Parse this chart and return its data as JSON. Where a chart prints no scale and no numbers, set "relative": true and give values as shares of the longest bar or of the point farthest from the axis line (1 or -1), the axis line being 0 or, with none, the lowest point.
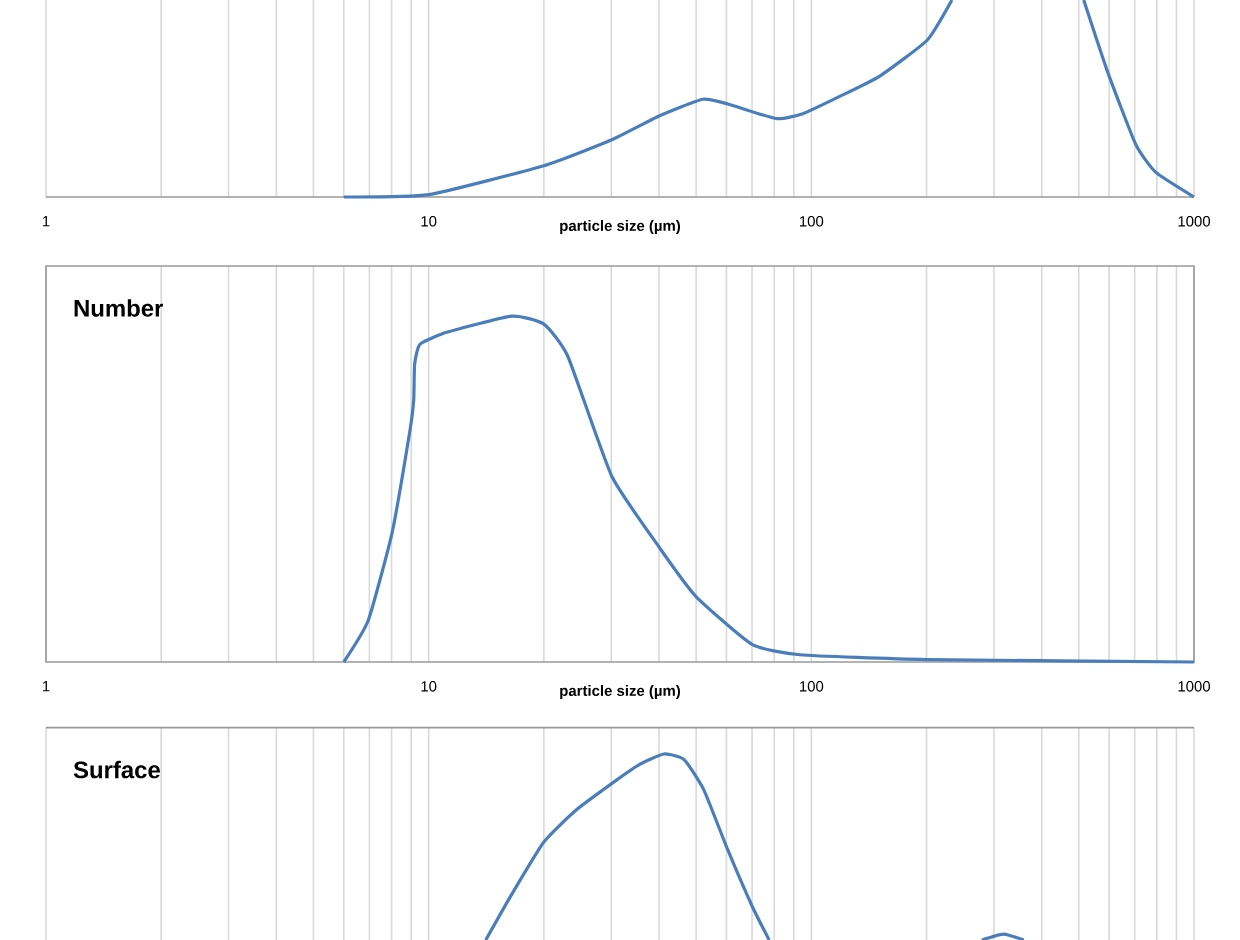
{
  "chart_data": [
    {
      "type": "line",
      "relative": true,
      "log": "x",
      "grid": "x",
      "color": "#4a7ebb",
      "xlabel": "particle size (µm)",
      "xlim": [
        1,
        1000
      ],
      "xticks": [
        1,
        10,
        100,
        1000
      ],
      "x": [
        6.0,
        10,
        20,
        30,
        40,
        52,
        60.5,
        81,
        95,
        119,
        151,
        201,
        233,
        350,
        515,
        595,
        704,
        794,
        1000
      ],
      "values": [
        0,
        0.012,
        0.159,
        0.289,
        0.411,
        0.496,
        0.472,
        0.398,
        0.423,
        0.512,
        0.614,
        0.797,
        1.0,
        null,
        1.0,
        0.634,
        0.268,
        0.126,
        0
      ]
    },
    {
      "type": "line",
      "relative": true,
      "log": "x",
      "grid": "x",
      "color": "#4a7ebb",
      "title": "Number",
      "xlabel": "particle size (µm)",
      "xlim": [
        1,
        1000
      ],
      "xticks": [
        1,
        10,
        100,
        1000
      ],
      "x": [
        6.0,
        6.95,
        8.03,
        8.92,
        9.14,
        9.19,
        9.5,
        11.2,
        16.5,
        20,
        23.1,
        30.1,
        40.2,
        49.9,
        70,
        93.3,
        201,
        1000
      ],
      "values": [
        0,
        0.12,
        0.375,
        0.664,
        0.757,
        0.861,
        0.919,
        0.954,
        1,
        0.977,
        0.884,
        0.537,
        0.329,
        0.19,
        0.051,
        0.021,
        0.007,
        0
      ]
    },
    {
      "type": "line",
      "relative": true,
      "log": "x",
      "grid": "x",
      "color": "#4a7ebb",
      "title": "Surface",
      "tick_labels": false,
      "xlim": [
        1,
        1000
      ],
      "xticks": [
        1,
        10,
        100,
        1000
      ],
      "x": [
        14.1,
        16.5,
        20,
        24.3,
        30.9,
        35.6,
        41.2,
        46.5,
        52.4,
        60.5,
        70,
        77.6,
        150,
        279,
        318,
        359
      ],
      "values": [
        0,
        0.247,
        0.527,
        0.699,
        0.858,
        0.944,
        1,
        0.97,
        0.806,
        0.484,
        0.183,
        0,
        null,
        0,
        0.032,
        0
      ]
    }
  ]
}
